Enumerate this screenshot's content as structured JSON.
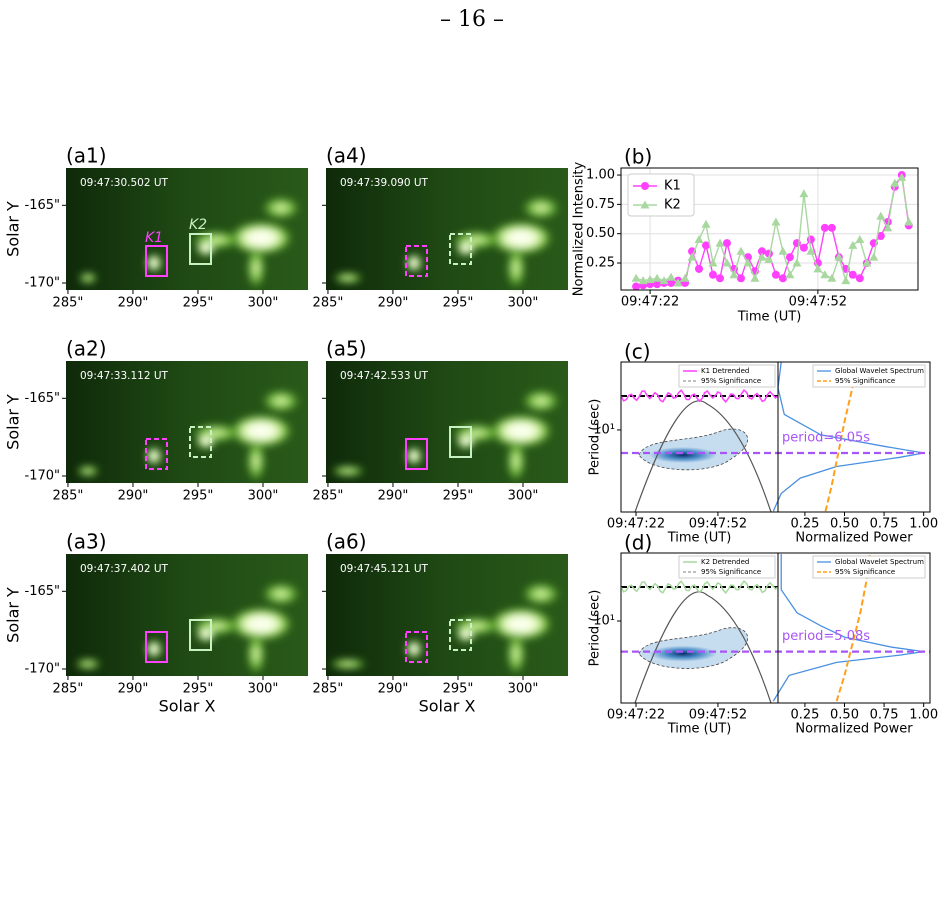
{
  "page_number": "– 16 –",
  "figure": {
    "images": {
      "ylabel": "Solar Y",
      "xlabel": "Solar X",
      "xlim": [
        284.85,
        303.46
      ],
      "ylim": [
        -170.45,
        -162.6
      ],
      "xticks": [
        {
          "value": 285,
          "label": "285\""
        },
        {
          "value": 290,
          "label": "290\""
        },
        {
          "value": 295,
          "label": "295\""
        },
        {
          "value": 300,
          "label": "300\""
        }
      ],
      "yticks": [
        {
          "value": -165,
          "label": "-165\""
        },
        {
          "value": -170,
          "label": "-170\""
        }
      ],
      "box_labels": [
        "K1",
        "K2"
      ],
      "k1_color": "#ff40ff",
      "k2_color": "#c8f0c0",
      "panels": [
        {
          "label": "(a1)",
          "time": "09:47:30.502 UT",
          "boxes": "solid"
        },
        {
          "label": "(a2)",
          "time": "09:47:33.112 UT",
          "boxes": "dashed"
        },
        {
          "label": "(a3)",
          "time": "09:47:37.402 UT",
          "boxes": "solid"
        },
        {
          "label": "(a4)",
          "time": "09:47:39.090 UT",
          "boxes": "dashed"
        },
        {
          "label": "(a5)",
          "time": "09:47:42.533 UT",
          "boxes": "solid"
        },
        {
          "label": "(a6)",
          "time": "09:47:45.121 UT",
          "boxes": "dashed"
        }
      ]
    }
  },
  "chart_data": [
    {
      "type": "line",
      "title": "(b)",
      "ylabel": "Normalized Intensity",
      "xlabel": "Time (UT)",
      "x": [
        19.5,
        20.75,
        22,
        23.25,
        24.5,
        25.75,
        27,
        28.25,
        29.5,
        30.75,
        32,
        33.25,
        34.5,
        35.75,
        37,
        38.25,
        39.5,
        40.75,
        42,
        43.25,
        44.5,
        45.75,
        47,
        48.25,
        49.5,
        50.75,
        52,
        53.25,
        54.5,
        55.75,
        57,
        58.25,
        59.5,
        60.75,
        62,
        63.25,
        64.5,
        65.75,
        67,
        68.25
      ],
      "xlim": [
        16.8,
        69.9
      ],
      "xticks": [
        {
          "value": 22,
          "label": "09:47:22"
        },
        {
          "value": 52,
          "label": "09:47:52"
        }
      ],
      "ylim": [
        0.02,
        1.06
      ],
      "yticks": [
        0.25,
        {
          "value": 0.5,
          "label": "0.50"
        },
        0.75,
        {
          "value": 1,
          "label": "1.00"
        }
      ],
      "grid": true,
      "legend": "upper-left",
      "series": [
        {
          "name": "K1",
          "color": "#ff40ff",
          "marker": "circle",
          "values": [
            0.05,
            0.06,
            0.07,
            0.07,
            0.08,
            0.08,
            0.1,
            0.08,
            0.35,
            0.2,
            0.4,
            0.15,
            0.12,
            0.42,
            0.2,
            0.12,
            0.3,
            0.18,
            0.35,
            0.33,
            0.15,
            0.12,
            0.3,
            0.42,
            0.38,
            0.45,
            0.25,
            0.55,
            0.55,
            0.3,
            0.2,
            0.15,
            0.12,
            0.25,
            0.42,
            0.48,
            0.6,
            0.9,
            1.0,
            0.57
          ]
        },
        {
          "name": "K2",
          "color": "#a8d8a0",
          "marker": "triangle",
          "values": [
            0.12,
            0.1,
            0.11,
            0.12,
            0.1,
            0.13,
            0.08,
            0.12,
            0.3,
            0.45,
            0.58,
            0.25,
            0.42,
            0.25,
            0.15,
            0.35,
            0.25,
            0.12,
            0.3,
            0.28,
            0.6,
            0.35,
            0.15,
            0.25,
            0.84,
            0.35,
            0.2,
            0.15,
            0.12,
            0.3,
            0.1,
            0.4,
            0.45,
            0.25,
            0.3,
            0.65,
            0.55,
            0.93,
            0.98,
            0.6
          ]
        }
      ]
    },
    {
      "type": "wavelet",
      "title": "(c)",
      "ylabel": "Period (sec)",
      "xlabel": "Time (UT)",
      "power_xlabel": "Normalized Power",
      "xlim": [
        16.5,
        74
      ],
      "xticks": [
        {
          "value": 22,
          "label": "09:47:22"
        },
        {
          "value": 52,
          "label": "09:47:52"
        }
      ],
      "ylog": true,
      "ylim": [
        1.67,
        44
      ],
      "yticks": [
        {
          "value": 10,
          "label": "10¹"
        }
      ],
      "power_xlim": [
        0.08,
        1.04
      ],
      "power_xticks": [
        0.25,
        {
          "value": 0.5,
          "label": "0.50"
        },
        0.75,
        {
          "value": 1,
          "label": "1.00"
        }
      ],
      "detrended": {
        "name": "K1 Detrended",
        "color": "#ff40ff"
      },
      "significance_left": {
        "name": "95% Significance",
        "color": "#808080"
      },
      "spectrum": {
        "name": "Global Wavelet Spectrum",
        "color": "#4a90e2",
        "period": [
          1.7,
          2.5,
          3.5,
          4.5,
          5.5,
          6.05,
          7,
          9,
          14,
          25,
          44
        ],
        "power": [
          0.05,
          0.1,
          0.22,
          0.45,
          0.85,
          1.0,
          0.75,
          0.35,
          0.12,
          0.08,
          0.1
        ]
      },
      "significance": {
        "name": "95% Significance",
        "color": "#ff9f1a",
        "period": [
          1.7,
          3,
          6,
          12,
          25,
          44
        ],
        "power": [
          0.38,
          0.42,
          0.46,
          0.5,
          0.55,
          0.58
        ]
      },
      "period": 6.05,
      "period_label": "period=6.05s",
      "period_color": "#a855f7"
    },
    {
      "type": "wavelet",
      "title": "(d)",
      "ylabel": "Period (sec)",
      "xlabel": "Time (UT)",
      "power_xlabel": "Normalized Power",
      "xlim": [
        16.5,
        74
      ],
      "xticks": [
        {
          "value": 22,
          "label": "09:47:22"
        },
        {
          "value": 52,
          "label": "09:47:52"
        }
      ],
      "ylog": true,
      "ylim": [
        1.63,
        45
      ],
      "yticks": [
        {
          "value": 10,
          "label": "10¹"
        }
      ],
      "power_xlim": [
        0.08,
        1.04
      ],
      "power_xticks": [
        0.25,
        {
          "value": 0.5,
          "label": "0.50"
        },
        0.75,
        {
          "value": 1,
          "label": "1.00"
        }
      ],
      "detrended": {
        "name": "K2 Detrended",
        "color": "#a8d8a0"
      },
      "significance_left": {
        "name": "95% Significance",
        "color": "#808080"
      },
      "spectrum": {
        "name": "Global Wavelet Spectrum",
        "color": "#4a90e2",
        "period": [
          1.7,
          3,
          4,
          4.7,
          5.08,
          5.6,
          7,
          9,
          12,
          20,
          44
        ],
        "power": [
          0.05,
          0.15,
          0.45,
          0.85,
          1.0,
          0.8,
          0.5,
          0.35,
          0.2,
          0.1,
          0.1
        ]
      },
      "significance": {
        "name": "95% Significance",
        "color": "#ff9f1a",
        "period": [
          1.7,
          3,
          6,
          12,
          25,
          44
        ],
        "power": [
          0.45,
          0.5,
          0.55,
          0.6,
          0.64,
          0.66
        ]
      },
      "period": 5.08,
      "period_label": "period=5.08s",
      "period_color": "#a855f7"
    }
  ]
}
